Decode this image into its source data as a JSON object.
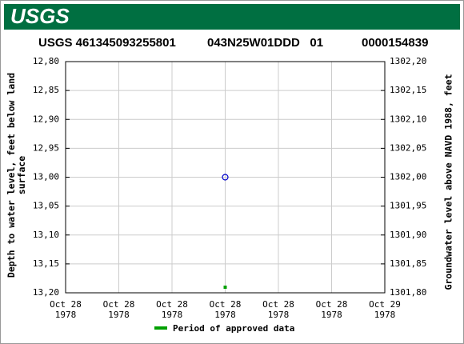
{
  "header": {
    "logo": "USGS"
  },
  "chart_data": {
    "type": "scatter",
    "title_parts": [
      "USGS 461345093255801",
      "043N25W01DDD   01",
      "0000154839"
    ],
    "ylabel": "Depth to water level, feet below land\nsurface",
    "y2label": "Groundwater level above NAVD 1988, feet",
    "categories": [
      "Oct 28\n1978",
      "Oct 28\n1978",
      "Oct 28\n1978",
      "Oct 28\n1978",
      "Oct 28\n1978",
      "Oct 28\n1978",
      "Oct 29\n1978"
    ],
    "values": [
      null,
      null,
      null,
      13.0,
      null,
      null,
      null
    ],
    "color": "#0000cc",
    "ylim": [
      12.8,
      13.2
    ],
    "y_inverted": true,
    "yticks": [
      {
        "value": 12.8,
        "label": "12,80"
      },
      {
        "value": 12.85,
        "label": "12,85"
      },
      {
        "value": 12.9,
        "label": "12,90"
      },
      {
        "value": 12.95,
        "label": "12,95"
      },
      {
        "value": 13.0,
        "label": "13,00"
      },
      {
        "value": 13.05,
        "label": "13,05"
      },
      {
        "value": 13.1,
        "label": "13,10"
      },
      {
        "value": 13.15,
        "label": "13,15"
      },
      {
        "value": 13.2,
        "label": "13,20"
      }
    ],
    "y2lim": [
      1301.8,
      1302.2
    ],
    "y2ticks": [
      {
        "value": 1302.2,
        "label": "1302,20"
      },
      {
        "value": 1302.15,
        "label": "1302,15"
      },
      {
        "value": 1302.1,
        "label": "1302,10"
      },
      {
        "value": 1302.05,
        "label": "1302,05"
      },
      {
        "value": 1302.0,
        "label": "1302,00"
      },
      {
        "value": 1301.95,
        "label": "1301,95"
      },
      {
        "value": 1301.9,
        "label": "1301,90"
      },
      {
        "value": 1301.85,
        "label": "1301,85"
      },
      {
        "value": 1301.8,
        "label": "1301,80"
      }
    ],
    "grid": true,
    "legend": {
      "label": "Period of approved data",
      "color": "#00a000"
    }
  }
}
